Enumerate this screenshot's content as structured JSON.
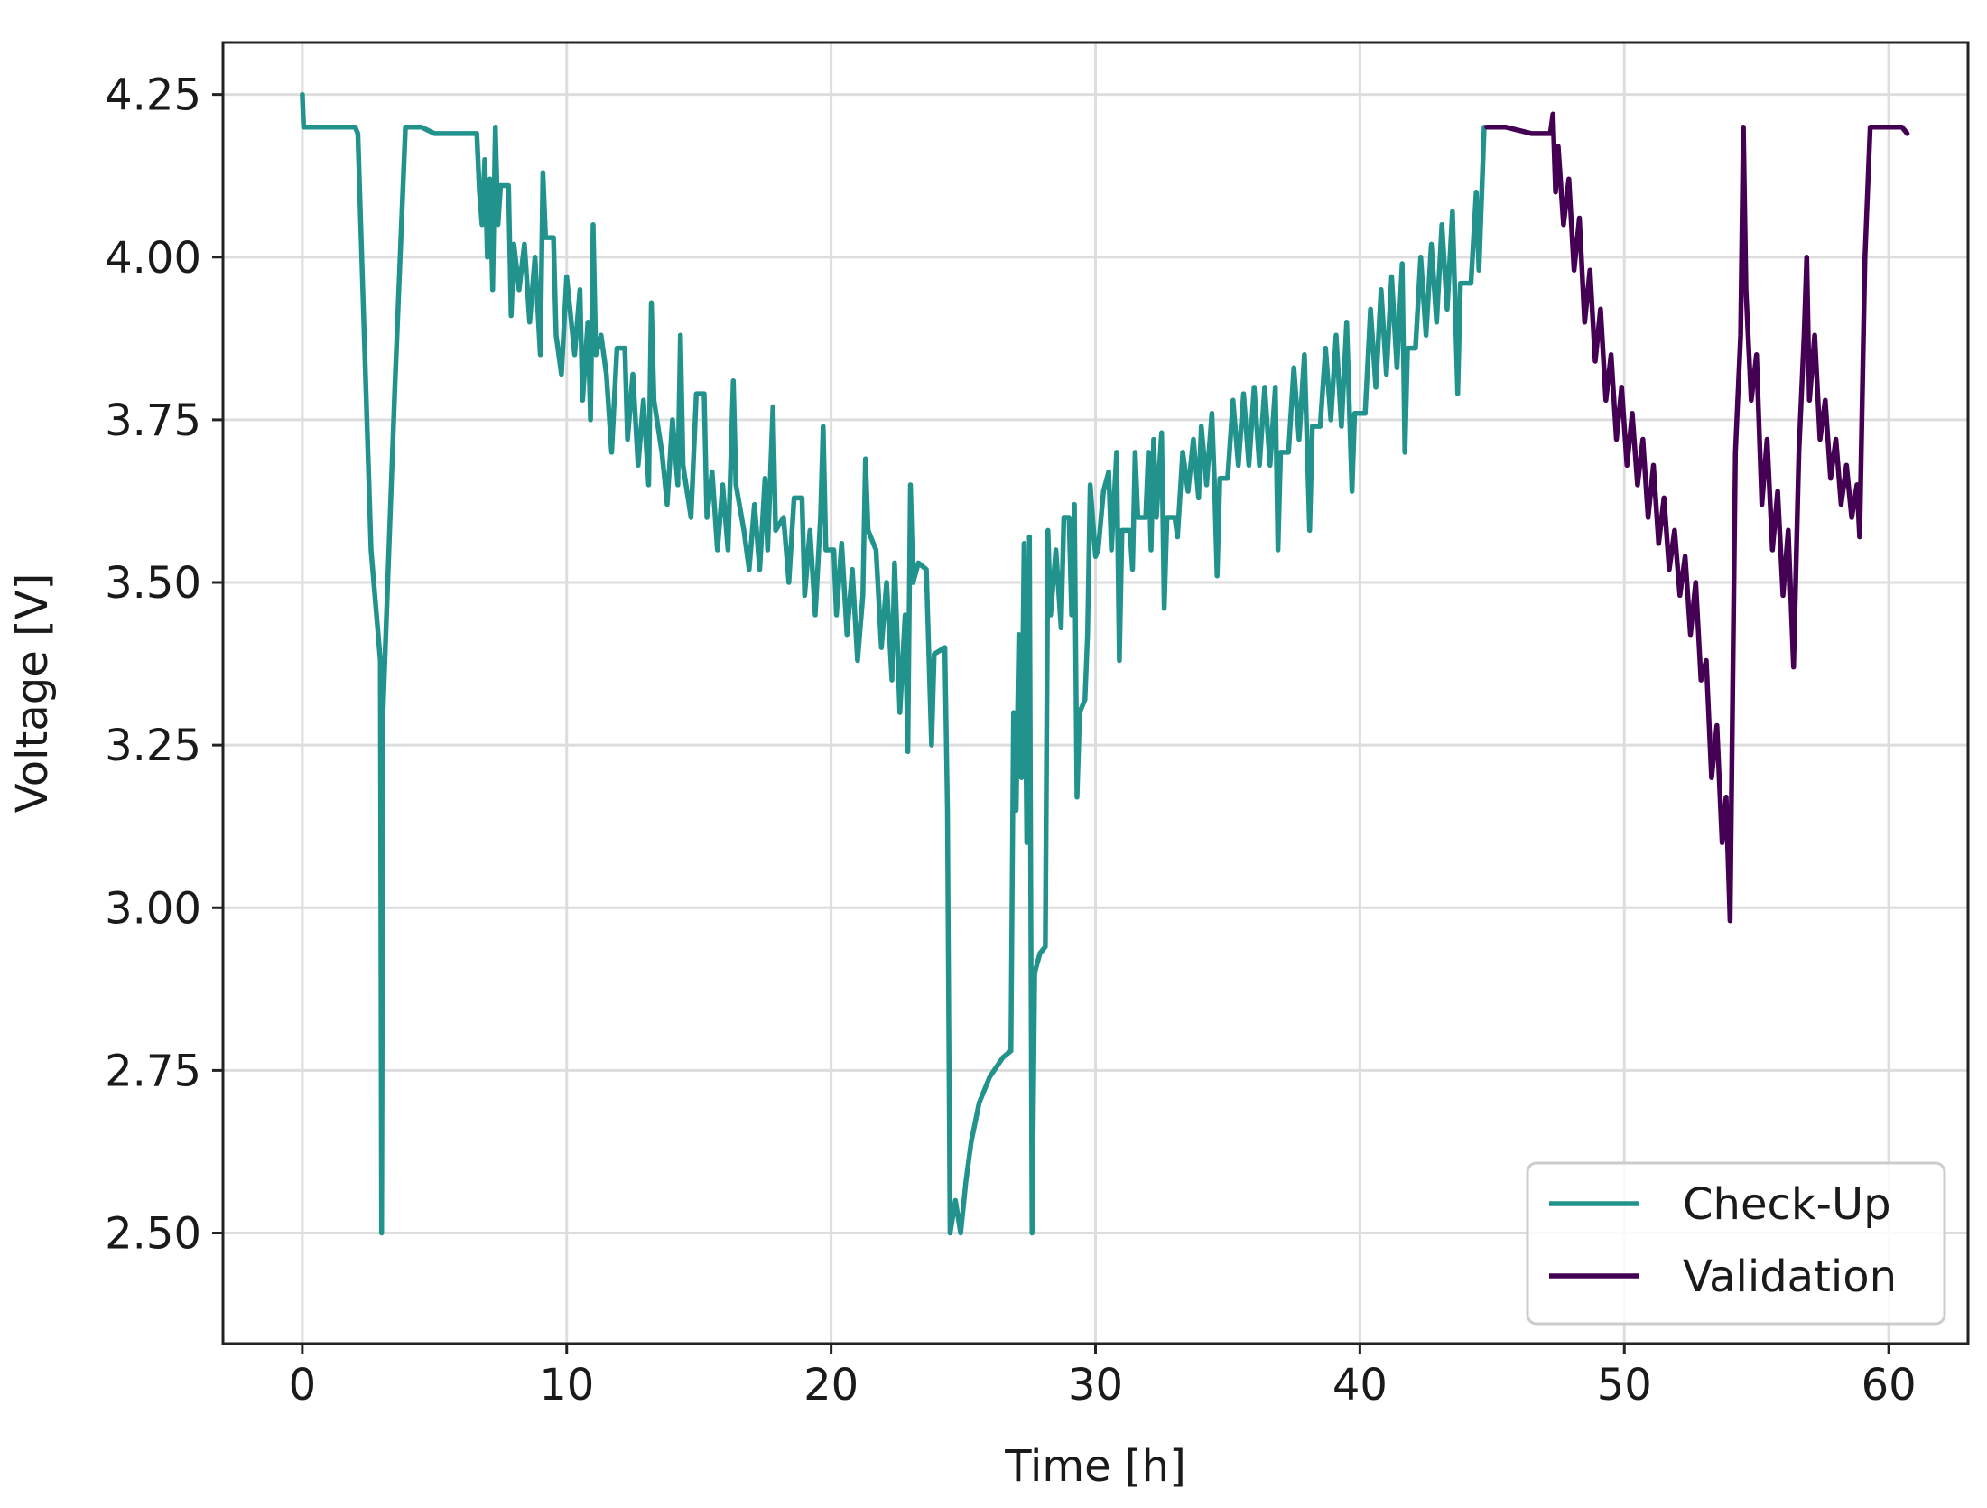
{
  "chart_data": {
    "type": "line",
    "title": "",
    "xlabel": "Time [h]",
    "ylabel": "Voltage [V]",
    "xlim": [
      -3,
      63
    ],
    "ylim": [
      2.33,
      4.33
    ],
    "x_ticks": [
      0,
      10,
      20,
      30,
      40,
      50,
      60
    ],
    "x_tick_labels": [
      "0",
      "10",
      "20",
      "30",
      "40",
      "50",
      "60"
    ],
    "y_ticks": [
      2.5,
      2.75,
      3.0,
      3.25,
      3.5,
      3.75,
      4.0,
      4.25
    ],
    "y_tick_labels": [
      "2.50",
      "2.75",
      "3.00",
      "3.25",
      "3.50",
      "3.75",
      "4.00",
      "4.25"
    ],
    "grid": true,
    "legend": {
      "position": "lower-right",
      "entries": [
        "Check-Up",
        "Validation"
      ]
    },
    "series": [
      {
        "name": "Check-Up",
        "color": "#21928c",
        "points": [
          [
            0.0,
            4.25
          ],
          [
            0.05,
            4.2
          ],
          [
            2.0,
            4.2
          ],
          [
            2.1,
            4.19
          ],
          [
            2.6,
            3.55
          ],
          [
            2.95,
            3.38
          ],
          [
            3.0,
            2.5
          ],
          [
            3.05,
            3.3
          ],
          [
            3.5,
            3.8
          ],
          [
            3.9,
            4.2
          ],
          [
            4.5,
            4.2
          ],
          [
            5.0,
            4.19
          ],
          [
            6.6,
            4.19
          ],
          [
            6.7,
            4.1
          ],
          [
            6.8,
            4.05
          ],
          [
            6.9,
            4.15
          ],
          [
            7.0,
            4.0
          ],
          [
            7.1,
            4.12
          ],
          [
            7.2,
            3.95
          ],
          [
            7.3,
            4.2
          ],
          [
            7.4,
            4.05
          ],
          [
            7.5,
            4.11
          ],
          [
            7.8,
            4.11
          ],
          [
            7.9,
            3.91
          ],
          [
            8.0,
            4.02
          ],
          [
            8.2,
            3.95
          ],
          [
            8.4,
            4.02
          ],
          [
            8.6,
            3.9
          ],
          [
            8.8,
            4.0
          ],
          [
            9.0,
            3.85
          ],
          [
            9.1,
            4.13
          ],
          [
            9.2,
            4.03
          ],
          [
            9.5,
            4.03
          ],
          [
            9.6,
            3.88
          ],
          [
            9.8,
            3.82
          ],
          [
            10.0,
            3.97
          ],
          [
            10.3,
            3.85
          ],
          [
            10.5,
            3.95
          ],
          [
            10.6,
            3.78
          ],
          [
            10.8,
            3.9
          ],
          [
            10.9,
            3.75
          ],
          [
            11.0,
            4.05
          ],
          [
            11.1,
            3.85
          ],
          [
            11.3,
            3.88
          ],
          [
            11.5,
            3.82
          ],
          [
            11.7,
            3.7
          ],
          [
            11.9,
            3.86
          ],
          [
            12.2,
            3.86
          ],
          [
            12.3,
            3.72
          ],
          [
            12.5,
            3.82
          ],
          [
            12.7,
            3.68
          ],
          [
            12.9,
            3.78
          ],
          [
            13.1,
            3.65
          ],
          [
            13.2,
            3.93
          ],
          [
            13.3,
            3.78
          ],
          [
            13.6,
            3.7
          ],
          [
            13.8,
            3.62
          ],
          [
            14.0,
            3.75
          ],
          [
            14.2,
            3.65
          ],
          [
            14.3,
            3.88
          ],
          [
            14.4,
            3.68
          ],
          [
            14.7,
            3.6
          ],
          [
            14.9,
            3.79
          ],
          [
            15.2,
            3.79
          ],
          [
            15.3,
            3.6
          ],
          [
            15.5,
            3.67
          ],
          [
            15.7,
            3.55
          ],
          [
            15.9,
            3.65
          ],
          [
            16.1,
            3.55
          ],
          [
            16.3,
            3.81
          ],
          [
            16.4,
            3.65
          ],
          [
            16.7,
            3.58
          ],
          [
            16.9,
            3.52
          ],
          [
            17.1,
            3.62
          ],
          [
            17.3,
            3.52
          ],
          [
            17.5,
            3.66
          ],
          [
            17.6,
            3.55
          ],
          [
            17.8,
            3.77
          ],
          [
            17.9,
            3.58
          ],
          [
            18.2,
            3.6
          ],
          [
            18.4,
            3.5
          ],
          [
            18.6,
            3.63
          ],
          [
            18.9,
            3.63
          ],
          [
            19.0,
            3.48
          ],
          [
            19.2,
            3.58
          ],
          [
            19.4,
            3.45
          ],
          [
            19.6,
            3.6
          ],
          [
            19.7,
            3.74
          ],
          [
            19.8,
            3.55
          ],
          [
            20.1,
            3.55
          ],
          [
            20.2,
            3.45
          ],
          [
            20.4,
            3.56
          ],
          [
            20.6,
            3.42
          ],
          [
            20.8,
            3.52
          ],
          [
            21.0,
            3.38
          ],
          [
            21.2,
            3.48
          ],
          [
            21.3,
            3.69
          ],
          [
            21.4,
            3.58
          ],
          [
            21.7,
            3.55
          ],
          [
            21.9,
            3.4
          ],
          [
            22.1,
            3.5
          ],
          [
            22.3,
            3.35
          ],
          [
            22.4,
            3.53
          ],
          [
            22.6,
            3.3
          ],
          [
            22.8,
            3.45
          ],
          [
            22.9,
            3.24
          ],
          [
            23.0,
            3.65
          ],
          [
            23.1,
            3.5
          ],
          [
            23.3,
            3.53
          ],
          [
            23.6,
            3.52
          ],
          [
            23.8,
            3.25
          ],
          [
            23.9,
            3.39
          ],
          [
            24.3,
            3.4
          ],
          [
            24.4,
            3.15
          ],
          [
            24.5,
            2.5
          ],
          [
            24.7,
            2.55
          ],
          [
            24.9,
            2.5
          ],
          [
            25.1,
            2.58
          ],
          [
            25.3,
            2.64
          ],
          [
            25.6,
            2.7
          ],
          [
            26.0,
            2.74
          ],
          [
            26.5,
            2.77
          ],
          [
            26.8,
            2.78
          ],
          [
            26.9,
            3.3
          ],
          [
            27.0,
            3.15
          ],
          [
            27.1,
            3.42
          ],
          [
            27.2,
            3.2
          ],
          [
            27.3,
            3.56
          ],
          [
            27.4,
            3.1
          ],
          [
            27.5,
            3.57
          ],
          [
            27.6,
            2.5
          ],
          [
            27.7,
            2.9
          ],
          [
            27.9,
            2.93
          ],
          [
            28.1,
            2.94
          ],
          [
            28.2,
            3.58
          ],
          [
            28.3,
            3.45
          ],
          [
            28.5,
            3.55
          ],
          [
            28.7,
            3.43
          ],
          [
            28.8,
            3.6
          ],
          [
            29.0,
            3.6
          ],
          [
            29.1,
            3.45
          ],
          [
            29.2,
            3.62
          ],
          [
            29.3,
            3.17
          ],
          [
            29.4,
            3.3
          ],
          [
            29.6,
            3.32
          ],
          [
            29.7,
            3.42
          ],
          [
            29.8,
            3.65
          ],
          [
            30.0,
            3.54
          ],
          [
            30.1,
            3.55
          ],
          [
            30.3,
            3.64
          ],
          [
            30.5,
            3.67
          ],
          [
            30.6,
            3.55
          ],
          [
            30.8,
            3.7
          ],
          [
            30.9,
            3.38
          ],
          [
            31.0,
            3.58
          ],
          [
            31.3,
            3.58
          ],
          [
            31.4,
            3.52
          ],
          [
            31.5,
            3.7
          ],
          [
            31.6,
            3.6
          ],
          [
            31.9,
            3.6
          ],
          [
            32.0,
            3.7
          ],
          [
            32.1,
            3.55
          ],
          [
            32.2,
            3.72
          ],
          [
            32.3,
            3.6
          ],
          [
            32.5,
            3.73
          ],
          [
            32.6,
            3.46
          ],
          [
            32.7,
            3.6
          ],
          [
            33.0,
            3.6
          ],
          [
            33.1,
            3.57
          ],
          [
            33.3,
            3.7
          ],
          [
            33.5,
            3.64
          ],
          [
            33.7,
            3.72
          ],
          [
            33.9,
            3.63
          ],
          [
            34.0,
            3.74
          ],
          [
            34.2,
            3.65
          ],
          [
            34.4,
            3.76
          ],
          [
            34.5,
            3.65
          ],
          [
            34.6,
            3.51
          ],
          [
            34.7,
            3.66
          ],
          [
            35.0,
            3.66
          ],
          [
            35.2,
            3.78
          ],
          [
            35.4,
            3.68
          ],
          [
            35.6,
            3.79
          ],
          [
            35.8,
            3.68
          ],
          [
            36.0,
            3.8
          ],
          [
            36.2,
            3.68
          ],
          [
            36.4,
            3.8
          ],
          [
            36.6,
            3.68
          ],
          [
            36.8,
            3.8
          ],
          [
            36.9,
            3.55
          ],
          [
            37.0,
            3.7
          ],
          [
            37.3,
            3.7
          ],
          [
            37.5,
            3.83
          ],
          [
            37.7,
            3.72
          ],
          [
            37.9,
            3.85
          ],
          [
            38.1,
            3.58
          ],
          [
            38.2,
            3.74
          ],
          [
            38.5,
            3.74
          ],
          [
            38.7,
            3.86
          ],
          [
            38.9,
            3.75
          ],
          [
            39.1,
            3.88
          ],
          [
            39.3,
            3.74
          ],
          [
            39.5,
            3.9
          ],
          [
            39.7,
            3.64
          ],
          [
            39.8,
            3.76
          ],
          [
            40.2,
            3.76
          ],
          [
            40.4,
            3.92
          ],
          [
            40.6,
            3.8
          ],
          [
            40.8,
            3.95
          ],
          [
            41.0,
            3.82
          ],
          [
            41.2,
            3.97
          ],
          [
            41.4,
            3.83
          ],
          [
            41.6,
            3.99
          ],
          [
            41.7,
            3.7
          ],
          [
            41.8,
            3.86
          ],
          [
            42.1,
            3.86
          ],
          [
            42.3,
            4.0
          ],
          [
            42.5,
            3.88
          ],
          [
            42.7,
            4.02
          ],
          [
            42.9,
            3.9
          ],
          [
            43.1,
            4.05
          ],
          [
            43.3,
            3.92
          ],
          [
            43.5,
            4.07
          ],
          [
            43.7,
            3.79
          ],
          [
            43.8,
            3.96
          ],
          [
            44.2,
            3.96
          ],
          [
            44.4,
            4.1
          ],
          [
            44.5,
            3.98
          ],
          [
            44.7,
            4.2
          ],
          [
            44.8,
            4.2
          ]
        ]
      },
      {
        "name": "Validation",
        "color": "#440154",
        "points": [
          [
            44.8,
            4.2
          ],
          [
            45.5,
            4.2
          ],
          [
            46.5,
            4.19
          ],
          [
            47.2,
            4.19
          ],
          [
            47.3,
            4.22
          ],
          [
            47.4,
            4.1
          ],
          [
            47.5,
            4.17
          ],
          [
            47.7,
            4.05
          ],
          [
            47.9,
            4.12
          ],
          [
            48.1,
            3.98
          ],
          [
            48.3,
            4.06
          ],
          [
            48.5,
            3.9
          ],
          [
            48.7,
            3.98
          ],
          [
            48.9,
            3.84
          ],
          [
            49.1,
            3.92
          ],
          [
            49.3,
            3.78
          ],
          [
            49.5,
            3.85
          ],
          [
            49.7,
            3.72
          ],
          [
            49.9,
            3.8
          ],
          [
            50.1,
            3.68
          ],
          [
            50.3,
            3.76
          ],
          [
            50.5,
            3.65
          ],
          [
            50.7,
            3.72
          ],
          [
            50.9,
            3.6
          ],
          [
            51.1,
            3.68
          ],
          [
            51.3,
            3.56
          ],
          [
            51.5,
            3.63
          ],
          [
            51.7,
            3.52
          ],
          [
            51.9,
            3.58
          ],
          [
            52.1,
            3.48
          ],
          [
            52.3,
            3.54
          ],
          [
            52.5,
            3.42
          ],
          [
            52.7,
            3.5
          ],
          [
            52.9,
            3.35
          ],
          [
            53.1,
            3.38
          ],
          [
            53.3,
            3.2
          ],
          [
            53.5,
            3.28
          ],
          [
            53.7,
            3.1
          ],
          [
            53.85,
            3.17
          ],
          [
            54.0,
            2.98
          ],
          [
            54.2,
            3.7
          ],
          [
            54.4,
            3.88
          ],
          [
            54.5,
            4.2
          ],
          [
            54.6,
            3.95
          ],
          [
            54.8,
            3.78
          ],
          [
            55.0,
            3.85
          ],
          [
            55.2,
            3.62
          ],
          [
            55.4,
            3.72
          ],
          [
            55.6,
            3.55
          ],
          [
            55.8,
            3.64
          ],
          [
            56.0,
            3.48
          ],
          [
            56.2,
            3.58
          ],
          [
            56.4,
            3.37
          ],
          [
            56.6,
            3.7
          ],
          [
            56.8,
            3.88
          ],
          [
            56.9,
            4.0
          ],
          [
            57.0,
            3.78
          ],
          [
            57.2,
            3.88
          ],
          [
            57.4,
            3.72
          ],
          [
            57.6,
            3.78
          ],
          [
            57.8,
            3.66
          ],
          [
            58.0,
            3.72
          ],
          [
            58.2,
            3.62
          ],
          [
            58.4,
            3.68
          ],
          [
            58.6,
            3.6
          ],
          [
            58.8,
            3.65
          ],
          [
            58.9,
            3.57
          ],
          [
            59.1,
            4.0
          ],
          [
            59.3,
            4.2
          ],
          [
            59.6,
            4.2
          ],
          [
            60.0,
            4.2
          ],
          [
            60.5,
            4.2
          ],
          [
            60.7,
            4.19
          ]
        ]
      }
    ]
  }
}
